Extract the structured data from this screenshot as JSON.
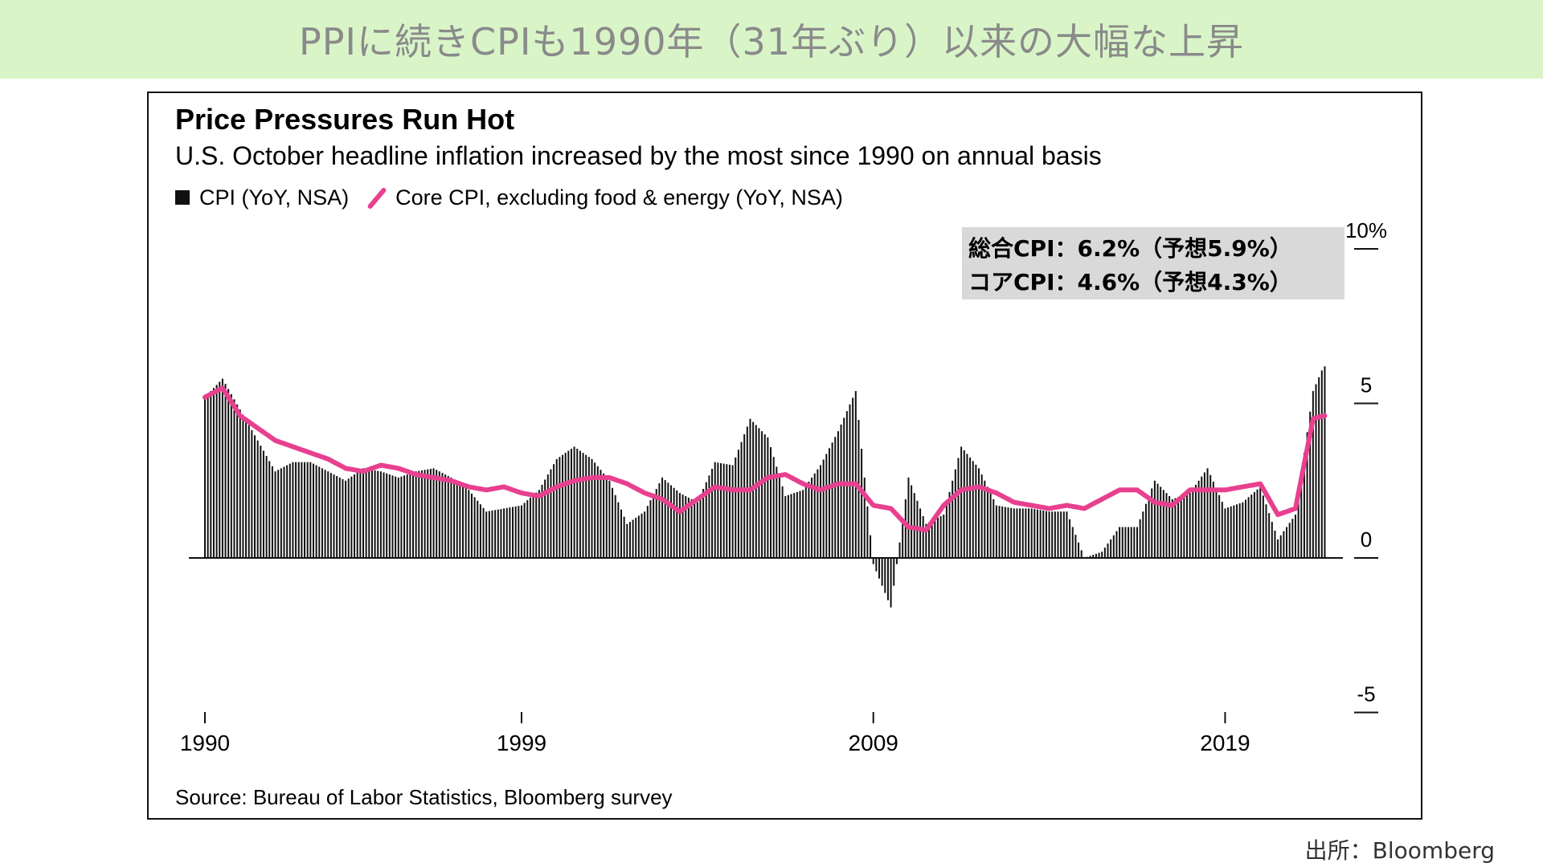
{
  "banner": {
    "title": "PPIに続きCPIも1990年（31年ぶり）以来の大幅な上昇"
  },
  "chart": {
    "title": "Price Pressures Run Hot",
    "subtitle": "U.S. October headline inflation increased by the most since 1990 on annual basis",
    "legend": {
      "cpi": "CPI (YoY, NSA)",
      "core": "Core CPI, excluding food & energy (YoY, NSA)"
    },
    "annotation": {
      "line1": "総合CPI：6.2%（予想5.9%）",
      "line2": "コアCPI：4.6%（予想4.3%）"
    },
    "source": "Source: Bureau of Labor Statistics, Bloomberg survey",
    "colors": {
      "cpi": "#111111",
      "core": "#e8408f",
      "annotation_bg": "#d9d9d9"
    }
  },
  "footer": {
    "source": "出所：Bloomberg"
  },
  "chart_data": {
    "type": "bar",
    "title": "Price Pressures Run Hot",
    "subtitle": "U.S. October headline inflation increased by the most since 1990 on annual basis",
    "xlabel": "",
    "ylabel": "",
    "ylim": [
      -5,
      10
    ],
    "y_ticks": [
      10,
      5,
      0,
      -5
    ],
    "y_tick_labels": [
      "10%",
      "5",
      "0",
      "-5"
    ],
    "x_ticks": [
      1990,
      1999,
      2009,
      2019
    ],
    "x_tick_labels": [
      "1990",
      "1999",
      "2009",
      "2019"
    ],
    "grid": false,
    "legend_position": "top-left",
    "series": [
      {
        "name": "CPI (YoY, NSA)",
        "kind": "bar",
        "x": [
          1990.0,
          1990.5,
          1991.0,
          1991.5,
          1992.0,
          1992.5,
          1993.0,
          1993.5,
          1994.0,
          1994.5,
          1995.0,
          1995.5,
          1996.0,
          1996.5,
          1997.0,
          1997.5,
          1998.0,
          1998.5,
          1999.0,
          1999.5,
          2000.0,
          2000.5,
          2001.0,
          2001.5,
          2002.0,
          2002.5,
          2003.0,
          2003.5,
          2004.0,
          2004.5,
          2005.0,
          2005.5,
          2006.0,
          2006.5,
          2007.0,
          2007.5,
          2008.0,
          2008.5,
          2009.0,
          2009.5,
          2010.0,
          2010.5,
          2011.0,
          2011.5,
          2012.0,
          2012.5,
          2013.0,
          2013.5,
          2014.0,
          2014.5,
          2015.0,
          2015.5,
          2016.0,
          2016.5,
          2017.0,
          2017.5,
          2018.0,
          2018.5,
          2019.0,
          2019.5,
          2020.0,
          2020.5,
          2021.0,
          2021.5,
          2021.8
        ],
        "values": [
          5.2,
          5.8,
          4.8,
          3.8,
          2.8,
          3.1,
          3.1,
          2.8,
          2.5,
          2.9,
          2.8,
          2.6,
          2.8,
          2.9,
          2.6,
          2.2,
          1.5,
          1.6,
          1.7,
          2.2,
          3.2,
          3.6,
          3.2,
          2.5,
          1.1,
          1.5,
          2.6,
          2.1,
          1.8,
          3.1,
          3.0,
          4.5,
          3.9,
          2.0,
          2.2,
          3.0,
          4.1,
          5.4,
          -0.2,
          -1.6,
          2.6,
          1.1,
          1.4,
          3.6,
          2.9,
          1.7,
          1.6,
          1.6,
          1.5,
          1.5,
          0.0,
          0.2,
          1.0,
          1.0,
          2.5,
          1.9,
          2.1,
          2.9,
          1.6,
          1.8,
          2.3,
          0.6,
          1.4,
          5.4,
          6.2
        ]
      },
      {
        "name": "Core CPI, excluding food & energy (YoY, NSA)",
        "kind": "line",
        "x": [
          1990.0,
          1990.5,
          1991.0,
          1991.5,
          1992.0,
          1992.5,
          1993.0,
          1993.5,
          1994.0,
          1994.5,
          1995.0,
          1995.5,
          1996.0,
          1996.5,
          1997.0,
          1997.5,
          1998.0,
          1998.5,
          1999.0,
          1999.5,
          2000.0,
          2000.5,
          2001.0,
          2001.5,
          2002.0,
          2002.5,
          2003.0,
          2003.5,
          2004.0,
          2004.5,
          2005.0,
          2005.5,
          2006.0,
          2006.5,
          2007.0,
          2007.5,
          2008.0,
          2008.5,
          2009.0,
          2009.5,
          2010.0,
          2010.5,
          2011.0,
          2011.5,
          2012.0,
          2012.5,
          2013.0,
          2013.5,
          2014.0,
          2014.5,
          2015.0,
          2015.5,
          2016.0,
          2016.5,
          2017.0,
          2017.5,
          2018.0,
          2018.5,
          2019.0,
          2019.5,
          2020.0,
          2020.5,
          2021.0,
          2021.5,
          2021.8
        ],
        "values": [
          5.2,
          5.5,
          4.6,
          4.2,
          3.8,
          3.6,
          3.4,
          3.2,
          2.9,
          2.8,
          3.0,
          2.9,
          2.7,
          2.6,
          2.5,
          2.3,
          2.2,
          2.3,
          2.1,
          2.0,
          2.3,
          2.5,
          2.6,
          2.6,
          2.4,
          2.1,
          1.9,
          1.5,
          1.9,
          2.3,
          2.2,
          2.2,
          2.6,
          2.7,
          2.4,
          2.2,
          2.4,
          2.4,
          1.7,
          1.6,
          1.0,
          0.9,
          1.7,
          2.2,
          2.3,
          2.1,
          1.8,
          1.7,
          1.6,
          1.7,
          1.6,
          1.9,
          2.2,
          2.2,
          1.8,
          1.7,
          2.2,
          2.2,
          2.2,
          2.3,
          2.4,
          1.4,
          1.6,
          4.5,
          4.6
        ]
      }
    ]
  }
}
